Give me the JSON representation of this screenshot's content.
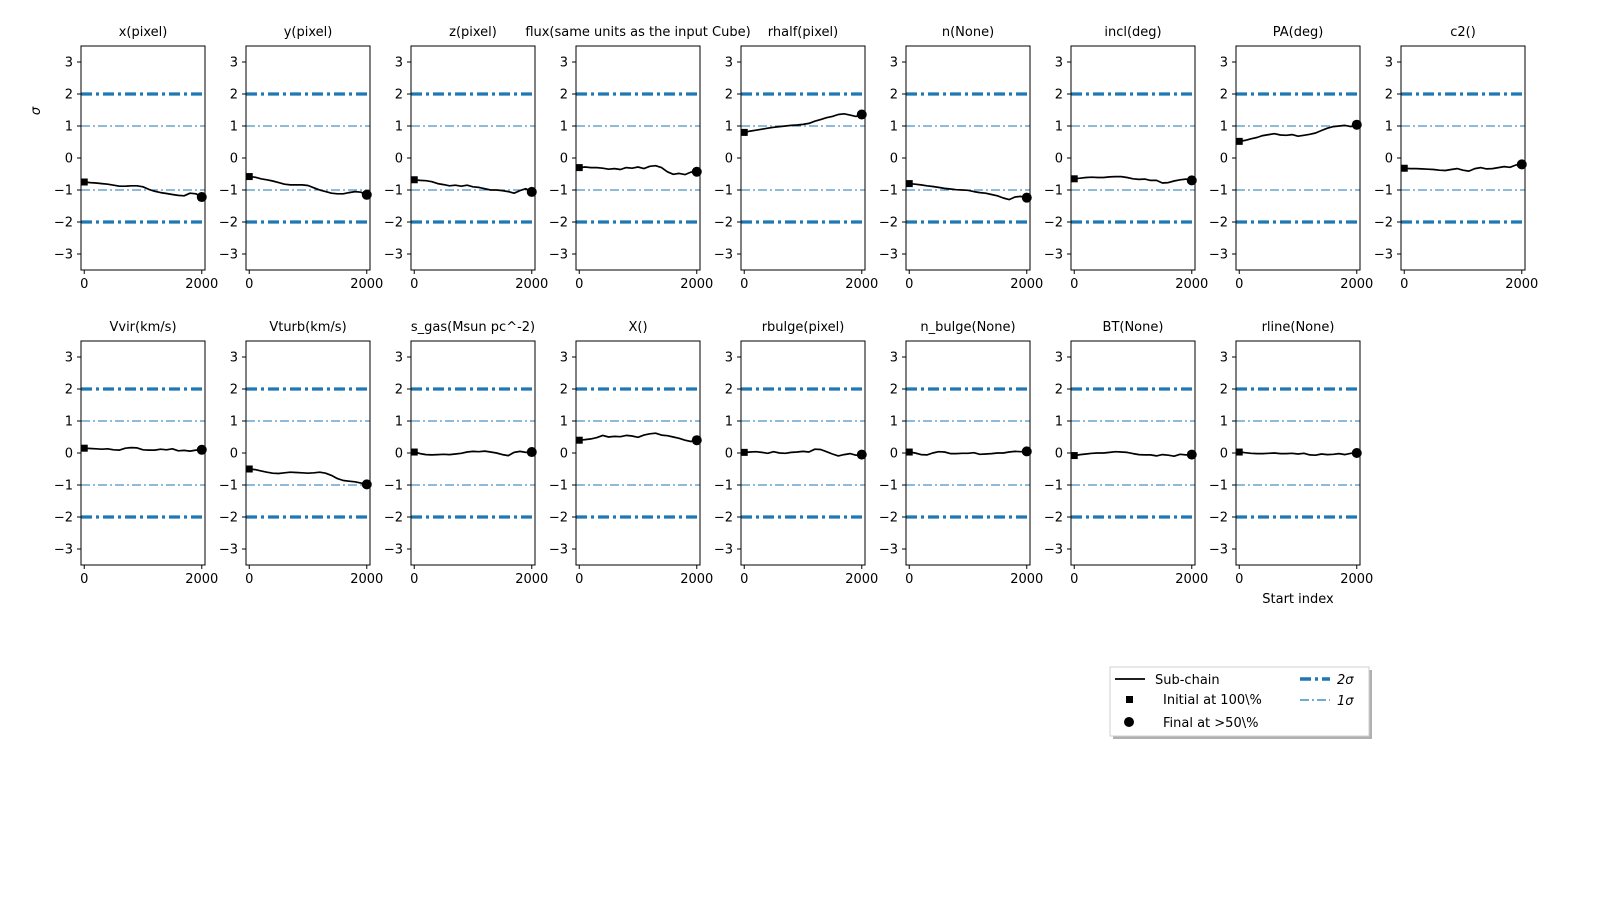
{
  "chart_data": {
    "type": "line",
    "panel_type": "small-multiples",
    "ylabel": "σ",
    "xlabel": "Start index",
    "ylim": [
      -3.5,
      3.5
    ],
    "yticks": [
      -3,
      -2,
      -1,
      0,
      1,
      2,
      3
    ],
    "xlim": [
      -55,
      2055
    ],
    "xticks": [
      0,
      2000
    ],
    "reference_lines": [
      {
        "name": "2σ",
        "values": [
          2,
          -2
        ],
        "style": "dash-dot thick"
      },
      {
        "name": "1σ",
        "values": [
          1,
          -1
        ],
        "style": "dash-dot thin"
      }
    ],
    "x": [
      0,
      100,
      200,
      300,
      400,
      500,
      600,
      700,
      800,
      900,
      1000,
      1100,
      1200,
      1300,
      1400,
      1500,
      1600,
      1700,
      1800,
      1900,
      2000
    ],
    "panels": [
      {
        "title": "x(pixel)",
        "initial": -0.75,
        "final": -1.22,
        "values": [
          -0.75,
          -0.77,
          -0.78,
          -0.8,
          -0.82,
          -0.85,
          -0.88,
          -0.88,
          -0.87,
          -0.87,
          -0.9,
          -0.98,
          -1.04,
          -1.08,
          -1.11,
          -1.14,
          -1.17,
          -1.18,
          -1.1,
          -1.12,
          -1.22
        ]
      },
      {
        "title": "y(pixel)",
        "initial": -0.58,
        "final": -1.15,
        "values": [
          -0.58,
          -0.6,
          -0.65,
          -0.68,
          -0.72,
          -0.77,
          -0.82,
          -0.84,
          -0.84,
          -0.84,
          -0.86,
          -0.93,
          -1.0,
          -1.05,
          -1.1,
          -1.12,
          -1.12,
          -1.08,
          -1.05,
          -1.07,
          -1.15
        ]
      },
      {
        "title": "z(pixel)",
        "initial": -0.68,
        "final": -1.06,
        "values": [
          -0.68,
          -0.7,
          -0.71,
          -0.74,
          -0.8,
          -0.83,
          -0.87,
          -0.85,
          -0.88,
          -0.85,
          -0.9,
          -0.92,
          -0.96,
          -1.0,
          -1.0,
          -1.02,
          -1.05,
          -1.1,
          -1.02,
          -0.96,
          -1.06
        ]
      },
      {
        "title": "flux(same units as the input Cube)",
        "initial": -0.3,
        "final": -0.43,
        "values": [
          -0.3,
          -0.28,
          -0.3,
          -0.3,
          -0.32,
          -0.35,
          -0.33,
          -0.36,
          -0.3,
          -0.32,
          -0.28,
          -0.33,
          -0.26,
          -0.24,
          -0.3,
          -0.43,
          -0.51,
          -0.48,
          -0.52,
          -0.44,
          -0.43
        ]
      },
      {
        "title": "rhalf(pixel)",
        "initial": 0.8,
        "final": 1.36,
        "values": [
          0.8,
          0.84,
          0.87,
          0.9,
          0.93,
          0.96,
          0.98,
          1.0,
          1.02,
          1.03,
          1.05,
          1.08,
          1.15,
          1.2,
          1.26,
          1.3,
          1.36,
          1.38,
          1.34,
          1.3,
          1.36
        ]
      },
      {
        "title": "n(None)",
        "initial": -0.8,
        "final": -1.24,
        "values": [
          -0.8,
          -0.82,
          -0.84,
          -0.87,
          -0.89,
          -0.92,
          -0.95,
          -0.97,
          -0.99,
          -1.0,
          -1.01,
          -1.05,
          -1.08,
          -1.1,
          -1.14,
          -1.18,
          -1.25,
          -1.3,
          -1.22,
          -1.2,
          -1.24
        ]
      },
      {
        "title": "incl(deg)",
        "initial": -0.65,
        "final": -0.7,
        "values": [
          -0.65,
          -0.63,
          -0.61,
          -0.6,
          -0.61,
          -0.61,
          -0.59,
          -0.58,
          -0.58,
          -0.61,
          -0.65,
          -0.67,
          -0.66,
          -0.7,
          -0.7,
          -0.78,
          -0.77,
          -0.72,
          -0.68,
          -0.66,
          -0.7
        ]
      },
      {
        "title": "PA(deg)",
        "initial": 0.52,
        "final": 1.04,
        "values": [
          0.52,
          0.55,
          0.6,
          0.64,
          0.7,
          0.73,
          0.76,
          0.72,
          0.71,
          0.73,
          0.68,
          0.71,
          0.74,
          0.78,
          0.86,
          0.93,
          0.98,
          1.0,
          1.02,
          0.98,
          1.04
        ]
      },
      {
        "title": "c2()",
        "initial": -0.32,
        "final": -0.2,
        "values": [
          -0.32,
          -0.33,
          -0.33,
          -0.34,
          -0.35,
          -0.36,
          -0.38,
          -0.39,
          -0.36,
          -0.33,
          -0.38,
          -0.41,
          -0.33,
          -0.3,
          -0.34,
          -0.33,
          -0.3,
          -0.27,
          -0.29,
          -0.22,
          -0.2
        ]
      },
      {
        "title": "Vvir(km/s)",
        "initial": 0.15,
        "final": 0.1,
        "values": [
          0.15,
          0.14,
          0.13,
          0.12,
          0.13,
          0.1,
          0.09,
          0.15,
          0.17,
          0.16,
          0.1,
          0.09,
          0.09,
          0.12,
          0.1,
          0.13,
          0.07,
          0.08,
          0.06,
          0.09,
          0.1
        ]
      },
      {
        "title": "Vturb(km/s)",
        "initial": -0.5,
        "final": -0.98,
        "values": [
          -0.5,
          -0.52,
          -0.56,
          -0.6,
          -0.63,
          -0.64,
          -0.62,
          -0.6,
          -0.61,
          -0.62,
          -0.63,
          -0.62,
          -0.6,
          -0.63,
          -0.7,
          -0.8,
          -0.86,
          -0.88,
          -0.9,
          -0.94,
          -0.98
        ]
      },
      {
        "title": "s_gas(Msun pc^-2)",
        "initial": 0.03,
        "final": 0.03,
        "values": [
          0.03,
          -0.02,
          -0.05,
          -0.06,
          -0.05,
          -0.04,
          -0.05,
          -0.03,
          -0.01,
          0.03,
          0.05,
          0.04,
          0.06,
          0.03,
          0.0,
          -0.05,
          -0.08,
          0.02,
          0.05,
          0.02,
          0.03
        ]
      },
      {
        "title": "X()",
        "initial": 0.4,
        "final": 0.4,
        "values": [
          0.4,
          0.42,
          0.44,
          0.48,
          0.55,
          0.5,
          0.52,
          0.51,
          0.55,
          0.53,
          0.49,
          0.56,
          0.6,
          0.62,
          0.56,
          0.54,
          0.5,
          0.46,
          0.4,
          0.36,
          0.4
        ]
      },
      {
        "title": "rbulge(pixel)",
        "initial": 0.02,
        "final": -0.05,
        "values": [
          0.02,
          0.03,
          0.04,
          0.02,
          -0.01,
          0.04,
          0.0,
          -0.01,
          0.02,
          0.03,
          0.05,
          0.03,
          0.12,
          0.11,
          0.04,
          -0.03,
          -0.09,
          -0.05,
          -0.02,
          -0.07,
          -0.05
        ]
      },
      {
        "title": "n_bulge(None)",
        "initial": 0.03,
        "final": 0.05,
        "values": [
          0.03,
          0.0,
          -0.05,
          -0.06,
          0.0,
          0.04,
          0.03,
          -0.02,
          -0.02,
          -0.01,
          -0.01,
          0.01,
          -0.04,
          -0.03,
          -0.02,
          0.0,
          0.0,
          0.03,
          0.05,
          0.04,
          0.05
        ]
      },
      {
        "title": "BT(None)",
        "initial": -0.08,
        "final": -0.05,
        "values": [
          -0.08,
          -0.05,
          -0.03,
          -0.01,
          0.0,
          0.0,
          0.02,
          0.04,
          0.03,
          0.02,
          -0.02,
          -0.05,
          -0.06,
          -0.06,
          -0.09,
          -0.05,
          -0.07,
          -0.1,
          -0.04,
          -0.06,
          -0.05
        ]
      },
      {
        "title": "rline(None)",
        "initial": 0.03,
        "final": 0.0,
        "values": [
          0.03,
          0.01,
          -0.01,
          -0.02,
          -0.02,
          -0.01,
          0.0,
          -0.02,
          -0.02,
          -0.01,
          -0.03,
          -0.01,
          -0.06,
          -0.07,
          -0.03,
          -0.05,
          -0.04,
          -0.02,
          -0.05,
          -0.01,
          0.0
        ]
      }
    ],
    "legend": {
      "location": "lower-right",
      "entries": [
        "Sub-chain",
        "Initial at 100\\%",
        "Final at $>50\\%$",
        "2σ",
        "1σ"
      ],
      "entry_labels": [
        "Sub-chain",
        "Initial at 100\\%",
        "Final at  >50\\%",
        "2σ",
        "1σ"
      ]
    },
    "colors": {
      "sigma_lines": "#1f77b4",
      "series": "#000000"
    }
  }
}
